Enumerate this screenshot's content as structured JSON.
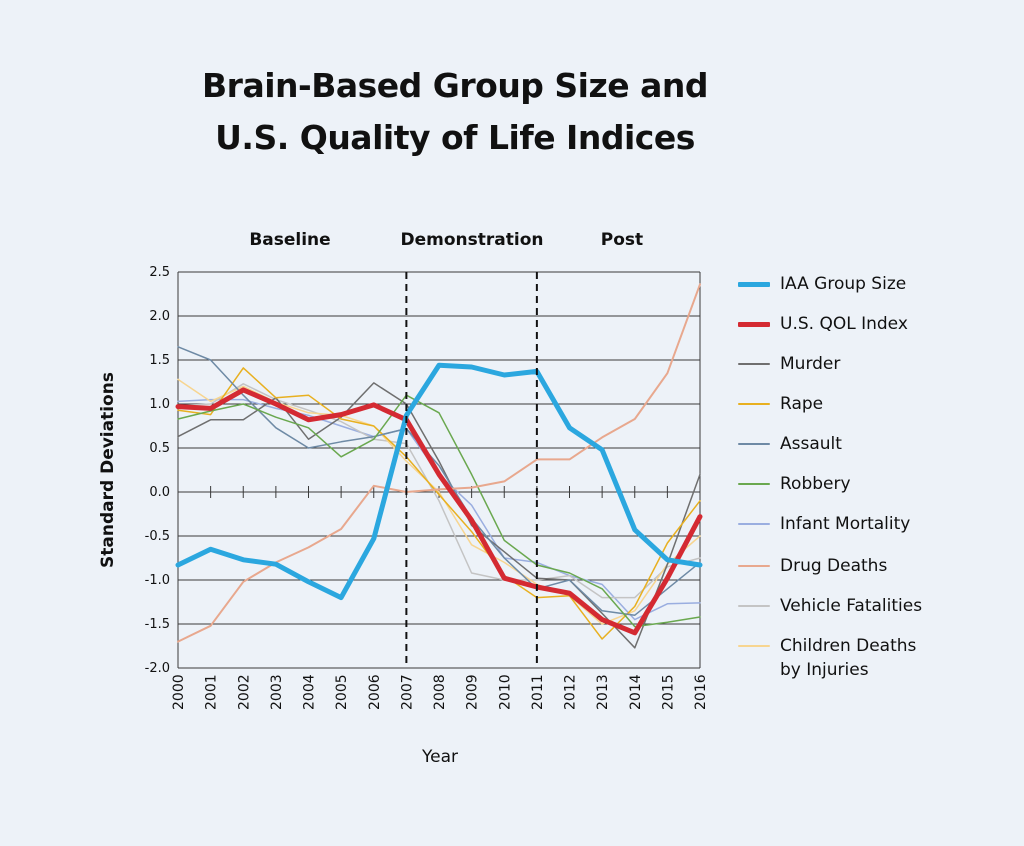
{
  "title": [
    "Brain-Based Group Size and",
    "U.S. Quality of Life Indices"
  ],
  "chart_data": {
    "type": "line",
    "xlabel": "Year",
    "ylabel": "Standard Deviations",
    "x": [
      2000,
      2001,
      2002,
      2003,
      2004,
      2005,
      2006,
      2007,
      2008,
      2009,
      2010,
      2011,
      2012,
      2013,
      2014,
      2015,
      2016
    ],
    "ylim": [
      -2.0,
      2.5
    ],
    "yticks": [
      "2.5",
      "2.0",
      "1.5",
      "1.0",
      "0.5",
      "0.0",
      "-0.5",
      "-1.0",
      "-1.5",
      "-2.0"
    ],
    "grid": true,
    "phases": [
      {
        "label": "Baseline"
      },
      {
        "label": "Demonstration"
      },
      {
        "label": "Post"
      }
    ],
    "phase_dividers": [
      2007,
      2011
    ],
    "legend_position": "right",
    "series": [
      {
        "name": "Infant Mortality",
        "color": "#9aaee0",
        "width": 1.5,
        "values": [
          1.03,
          1.05,
          1.05,
          0.95,
          0.87,
          0.75,
          0.63,
          0.72,
          0.2,
          -0.15,
          -0.75,
          -0.8,
          -0.95,
          -1.05,
          -1.45,
          -1.27,
          -1.26
        ]
      },
      {
        "name": "Vehicle Fatalities",
        "color": "#c4c4c4",
        "width": 1.5,
        "values": [
          0.98,
          1.0,
          1.23,
          1.05,
          0.93,
          0.8,
          0.6,
          0.55,
          -0.1,
          -0.92,
          -1.0,
          -1.0,
          -0.95,
          -1.2,
          -1.2,
          -0.85,
          -0.75
        ]
      },
      {
        "name": "Children Deaths by Injuries",
        "color": "#f7d590",
        "width": 1.5,
        "values": [
          1.28,
          1.03,
          1.2,
          1.02,
          0.9,
          0.87,
          0.75,
          0.35,
          0.0,
          -0.6,
          -0.8,
          -1.05,
          -1.18,
          -1.5,
          -1.35,
          -0.82,
          -0.5
        ]
      },
      {
        "name": "Murder",
        "color": "#6f6f6f",
        "width": 1.5,
        "values": [
          0.63,
          0.82,
          0.82,
          1.07,
          0.6,
          0.85,
          1.24,
          1.0,
          0.35,
          -0.38,
          -0.68,
          -0.98,
          -1.0,
          -1.38,
          -1.77,
          -0.82,
          0.2
        ]
      },
      {
        "name": "Rape",
        "color": "#e8b020",
        "width": 1.5,
        "values": [
          0.93,
          0.88,
          1.41,
          1.07,
          1.1,
          0.83,
          0.75,
          0.4,
          -0.03,
          -0.45,
          -0.95,
          -1.2,
          -1.18,
          -1.67,
          -1.3,
          -0.58,
          -0.1
        ]
      },
      {
        "name": "Assault",
        "color": "#6e8aa5",
        "width": 1.5,
        "values": [
          1.65,
          1.5,
          1.1,
          0.73,
          0.5,
          0.57,
          0.63,
          0.72,
          0.3,
          -0.3,
          -0.75,
          -1.1,
          -1.0,
          -1.35,
          -1.4,
          -1.1,
          -0.8
        ]
      },
      {
        "name": "Robbery",
        "color": "#6aa84f",
        "width": 1.5,
        "values": [
          0.83,
          0.92,
          1.0,
          0.85,
          0.73,
          0.4,
          0.6,
          1.1,
          0.9,
          0.2,
          -0.55,
          -0.83,
          -0.92,
          -1.1,
          -1.53,
          -1.48,
          -1.42
        ]
      },
      {
        "name": "Drug Deaths",
        "color": "#e8a88e",
        "width": 2,
        "values": [
          -1.7,
          -1.52,
          -1.02,
          -0.8,
          -0.63,
          -0.42,
          0.07,
          0.0,
          0.03,
          0.05,
          0.12,
          0.37,
          0.37,
          0.62,
          0.83,
          1.35,
          2.36
        ]
      },
      {
        "name": "U.S. QOL Index",
        "color": "#d42a32",
        "width": 5,
        "values": [
          0.97,
          0.95,
          1.16,
          1.0,
          0.82,
          0.88,
          0.99,
          0.82,
          0.2,
          -0.32,
          -0.98,
          -1.08,
          -1.15,
          -1.45,
          -1.6,
          -0.98,
          -0.28
        ]
      },
      {
        "name": "IAA Group Size",
        "color": "#2ba7df",
        "width": 5,
        "values": [
          -0.83,
          -0.65,
          -0.77,
          -0.82,
          -1.02,
          -1.2,
          -0.53,
          0.87,
          1.44,
          1.42,
          1.33,
          1.37,
          0.73,
          0.48,
          -0.43,
          -0.77,
          -0.83
        ]
      }
    ],
    "legend": [
      {
        "name": "IAA Group Size",
        "color": "#2ba7df",
        "thick": true
      },
      {
        "name": "U.S. QOL Index",
        "color": "#d42a32",
        "thick": true
      },
      {
        "name": "Murder",
        "color": "#6f6f6f",
        "thick": false
      },
      {
        "name": "Rape",
        "color": "#e8b020",
        "thick": false
      },
      {
        "name": "Assault",
        "color": "#6e8aa5",
        "thick": false
      },
      {
        "name": "Robbery",
        "color": "#6aa84f",
        "thick": false
      },
      {
        "name": "Infant Mortality",
        "color": "#9aaee0",
        "thick": false
      },
      {
        "name": "Drug Deaths",
        "color": "#e8a88e",
        "thick": false
      },
      {
        "name": "Vehicle Fatalities",
        "color": "#c4c4c4",
        "thick": false
      },
      {
        "name": "Children Deaths\nby Injuries",
        "color": "#f7d590",
        "thick": false
      }
    ]
  }
}
